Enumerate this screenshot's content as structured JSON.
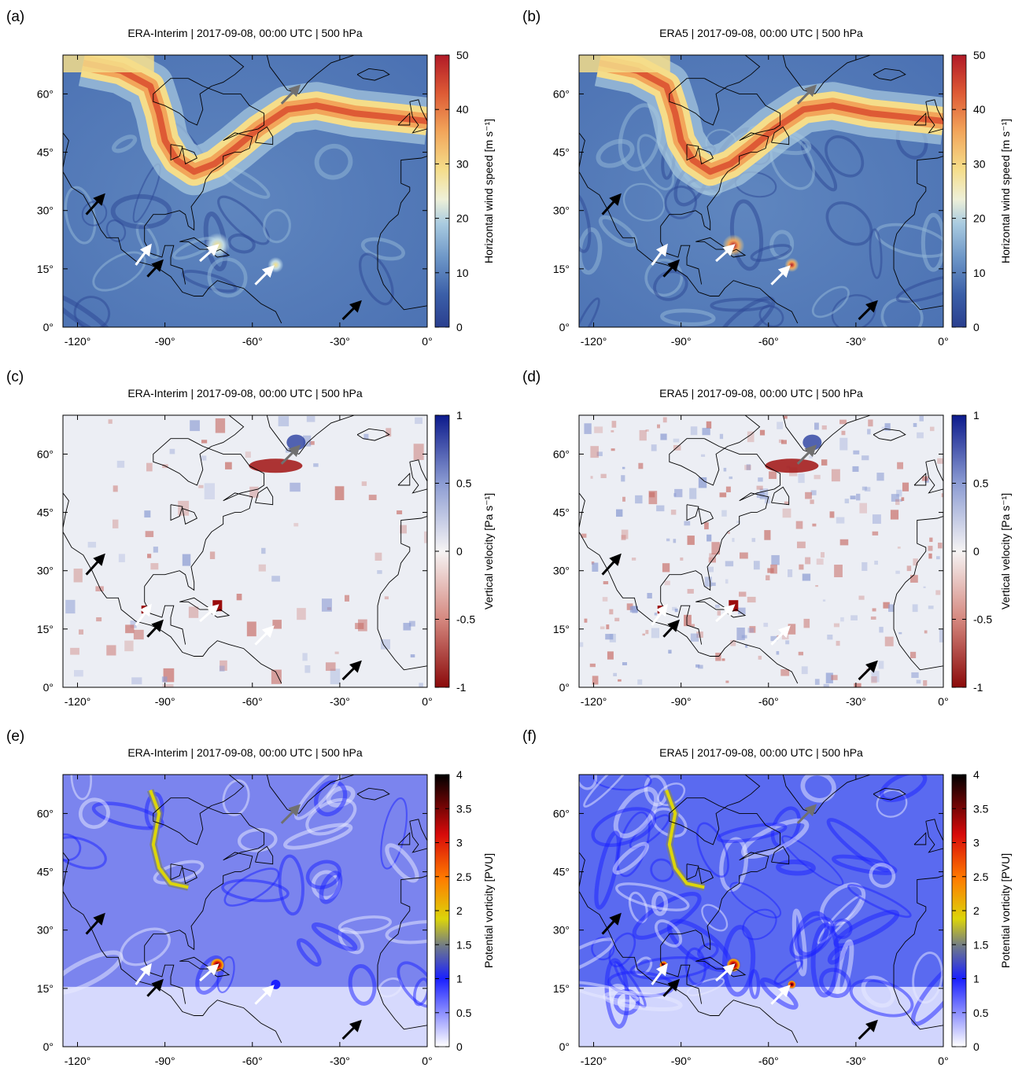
{
  "chart_data": [
    {
      "id": "a",
      "panel_letter": "(a)",
      "type": "heatmap",
      "title": "ERA-Interim | 2017-09-08, 00:00 UTC | 500 hPa",
      "colorbar": {
        "label": "Horizontal wind speed [m s⁻¹]",
        "ticks": [
          "50",
          "40",
          "30",
          "20",
          "10",
          "0"
        ],
        "range": [
          0,
          50
        ],
        "colormap": "blue-white-red"
      },
      "xticks": [
        "-120°",
        "-90°",
        "-60°",
        "-30°",
        "0°"
      ],
      "yticks": [
        "60°",
        "45°",
        "30°",
        "15°",
        "0°"
      ]
    },
    {
      "id": "b",
      "panel_letter": "(b)",
      "type": "heatmap",
      "title": "ERA5 | 2017-09-08, 00:00 UTC | 500 hPa",
      "colorbar": {
        "label": "Horizontal wind speed [m s⁻¹]",
        "ticks": [
          "50",
          "40",
          "30",
          "20",
          "10",
          "0"
        ],
        "range": [
          0,
          50
        ],
        "colormap": "blue-white-red"
      },
      "xticks": [
        "-120°",
        "-90°",
        "-60°",
        "-30°",
        "0°"
      ],
      "yticks": [
        "60°",
        "45°",
        "30°",
        "15°",
        "0°"
      ]
    },
    {
      "id": "c",
      "panel_letter": "(c)",
      "type": "heatmap",
      "title": "ERA-Interim | 2017-09-08, 00:00 UTC | 500 hPa",
      "colorbar": {
        "label": "Vertical velocity [Pa s⁻¹]",
        "ticks": [
          "1",
          "0.5",
          "0",
          "-0.5",
          "-1"
        ],
        "range": [
          -1,
          1
        ],
        "colormap": "red-white-blue"
      },
      "xticks": [
        "-120°",
        "-90°",
        "-60°",
        "-30°",
        "0°"
      ],
      "yticks": [
        "60°",
        "45°",
        "30°",
        "15°",
        "0°"
      ]
    },
    {
      "id": "d",
      "panel_letter": "(d)",
      "type": "heatmap",
      "title": "ERA5 | 2017-09-08, 00:00 UTC | 500 hPa",
      "colorbar": {
        "label": "Vertical velocity [Pa s⁻¹]",
        "ticks": [
          "1",
          "0.5",
          "0",
          "-0.5",
          "-1"
        ],
        "range": [
          -1,
          1
        ],
        "colormap": "red-white-blue"
      },
      "xticks": [
        "-120°",
        "-90°",
        "-60°",
        "-30°",
        "0°"
      ],
      "yticks": [
        "60°",
        "45°",
        "30°",
        "15°",
        "0°"
      ]
    },
    {
      "id": "e",
      "panel_letter": "(e)",
      "type": "heatmap",
      "title": "ERA-Interim | 2017-09-08, 00:00 UTC | 500 hPa",
      "colorbar": {
        "label": "Potential vorticity [PVU]",
        "ticks": [
          "4",
          "3.5",
          "3",
          "2.5",
          "2",
          "1.5",
          "1",
          "0.5",
          "0"
        ],
        "range": [
          0,
          4
        ],
        "colormap": "white-blue-gray-yellow-red-black"
      },
      "xticks": [
        "-120°",
        "-90°",
        "-60°",
        "-30°",
        "0°"
      ],
      "yticks": [
        "60°",
        "45°",
        "30°",
        "15°",
        "0°"
      ]
    },
    {
      "id": "f",
      "panel_letter": "(f)",
      "type": "heatmap",
      "title": "ERA5 | 2017-09-08, 00:00 UTC | 500 hPa",
      "colorbar": {
        "label": "Potential vorticity [PVU]",
        "ticks": [
          "4",
          "3.5",
          "3",
          "2.5",
          "2",
          "1.5",
          "1",
          "0.5",
          "0"
        ],
        "range": [
          0,
          4
        ],
        "colormap": "white-blue-gray-yellow-red-black"
      },
      "xticks": [
        "-120°",
        "-90°",
        "-60°",
        "-30°",
        "0°"
      ],
      "yticks": [
        "60°",
        "45°",
        "30°",
        "15°",
        "0°"
      ]
    }
  ],
  "map_extent": {
    "lon": [
      -125,
      0
    ],
    "lat": [
      0,
      70
    ]
  },
  "colors": {
    "arrow_white": "#ffffff",
    "arrow_black": "#000000",
    "arrow_gray": "#707070"
  }
}
